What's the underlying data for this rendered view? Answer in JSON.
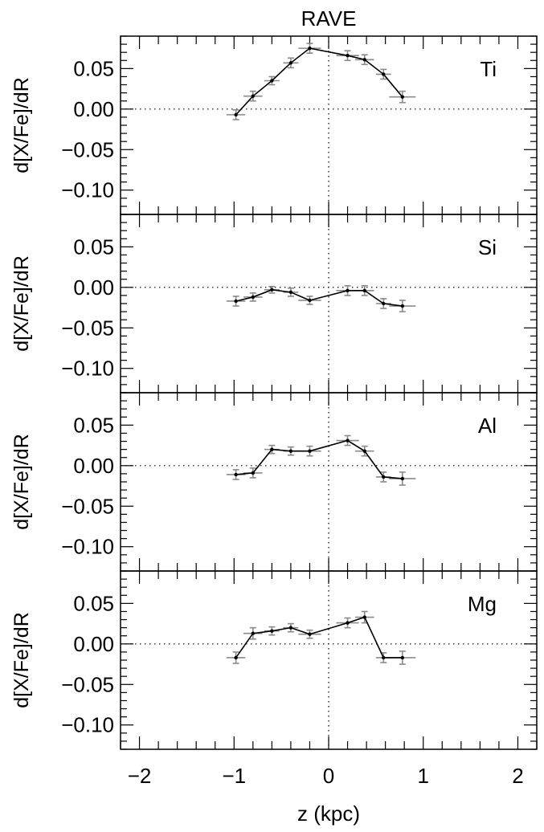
{
  "figure_title": "RAVE",
  "xlabel": "z (kpc)",
  "xticks": [
    "−2",
    "−1",
    "0",
    "1",
    "2"
  ],
  "yticks": [
    "0.05",
    "0.00",
    "−0.05",
    "−0.10"
  ],
  "chart_data": [
    {
      "type": "line",
      "element_label": "Ti",
      "ylabel": "d[X/Fe]/dR",
      "xlim": [
        -2.2,
        2.2
      ],
      "ylim": [
        -0.13,
        0.09
      ],
      "series": [
        {
          "x": [
            -0.98,
            -0.8,
            -0.6,
            -0.4,
            -0.2,
            0.2,
            0.38,
            0.58,
            0.78
          ],
          "y": [
            -0.007,
            0.016,
            0.035,
            0.057,
            0.075,
            0.066,
            0.061,
            0.043,
            0.015
          ],
          "xerr": [
            0.1,
            0.1,
            0.08,
            0.08,
            0.12,
            0.12,
            0.1,
            0.08,
            0.14
          ],
          "yerr": [
            0.006,
            0.006,
            0.005,
            0.006,
            0.006,
            0.006,
            0.006,
            0.006,
            0.007
          ]
        }
      ]
    },
    {
      "type": "line",
      "element_label": "Si",
      "ylabel": "d[X/Fe]/dR",
      "xlim": [
        -2.2,
        2.2
      ],
      "ylim": [
        -0.13,
        0.09
      ],
      "series": [
        {
          "x": [
            -0.98,
            -0.8,
            -0.6,
            -0.4,
            -0.2,
            0.2,
            0.38,
            0.58,
            0.78
          ],
          "y": [
            -0.017,
            -0.012,
            -0.003,
            -0.006,
            -0.016,
            -0.004,
            -0.004,
            -0.02,
            -0.023
          ],
          "xerr": [
            0.1,
            0.1,
            0.08,
            0.08,
            0.12,
            0.12,
            0.1,
            0.08,
            0.14
          ],
          "yerr": [
            0.006,
            0.005,
            0.004,
            0.005,
            0.005,
            0.006,
            0.006,
            0.006,
            0.007
          ]
        }
      ]
    },
    {
      "type": "line",
      "element_label": "Al",
      "ylabel": "d[X/Fe]/dR",
      "xlim": [
        -2.2,
        2.2
      ],
      "ylim": [
        -0.13,
        0.09
      ],
      "series": [
        {
          "x": [
            -0.98,
            -0.8,
            -0.6,
            -0.4,
            -0.2,
            0.2,
            0.38,
            0.58,
            0.78
          ],
          "y": [
            -0.011,
            -0.009,
            0.02,
            0.018,
            0.018,
            0.031,
            0.018,
            -0.014,
            -0.016
          ],
          "xerr": [
            0.1,
            0.1,
            0.08,
            0.08,
            0.12,
            0.12,
            0.1,
            0.08,
            0.14
          ],
          "yerr": [
            0.006,
            0.006,
            0.005,
            0.005,
            0.006,
            0.006,
            0.006,
            0.006,
            0.008
          ]
        }
      ]
    },
    {
      "type": "line",
      "element_label": "Mg",
      "ylabel": "d[X/Fe]/dR",
      "xlim": [
        -2.2,
        2.2
      ],
      "ylim": [
        -0.13,
        0.09
      ],
      "series": [
        {
          "x": [
            -0.98,
            -0.8,
            -0.6,
            -0.4,
            -0.2,
            0.2,
            0.38,
            0.58,
            0.78
          ],
          "y": [
            -0.017,
            0.013,
            0.016,
            0.02,
            0.012,
            0.026,
            0.033,
            -0.017,
            -0.017
          ],
          "xerr": [
            0.1,
            0.1,
            0.08,
            0.08,
            0.12,
            0.12,
            0.1,
            0.08,
            0.14
          ],
          "yerr": [
            0.007,
            0.007,
            0.005,
            0.005,
            0.005,
            0.006,
            0.007,
            0.006,
            0.008
          ]
        }
      ]
    }
  ],
  "colors": {
    "line": "#000000",
    "errorbar": "#8a8a8a",
    "axis": "#000000",
    "zero_line": "#000000"
  }
}
